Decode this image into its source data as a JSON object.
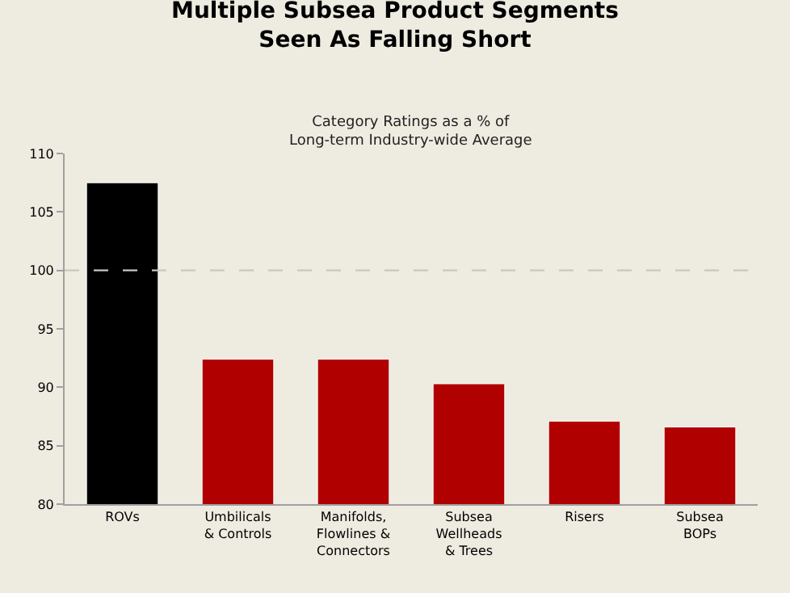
{
  "chart_data": {
    "type": "bar",
    "title": "Multiple Subsea Product Segments\nSeen As Falling Short",
    "subtitle": "Category Ratings as a % of\nLong-term Industry-wide Average",
    "categories": [
      "ROVs",
      "Umbilicals\n& Controls",
      "Manifolds,\nFlowlines &\nConnectors",
      "Subsea\nWellheads\n& Trees",
      "Risers",
      "Subsea\nBOPs"
    ],
    "values": [
      107.5,
      92.4,
      92.4,
      90.3,
      87.1,
      86.6
    ],
    "colors": [
      "#000000",
      "#b00000",
      "#b00000",
      "#b00000",
      "#b00000",
      "#b00000"
    ],
    "ylim": [
      80,
      110
    ],
    "yticks": [
      80,
      85,
      90,
      95,
      100,
      105,
      110
    ],
    "grid": false,
    "ref_lines": [
      {
        "axis": "y",
        "value": 100,
        "color": "#c8c8c0",
        "line_style": "dashed"
      }
    ]
  }
}
